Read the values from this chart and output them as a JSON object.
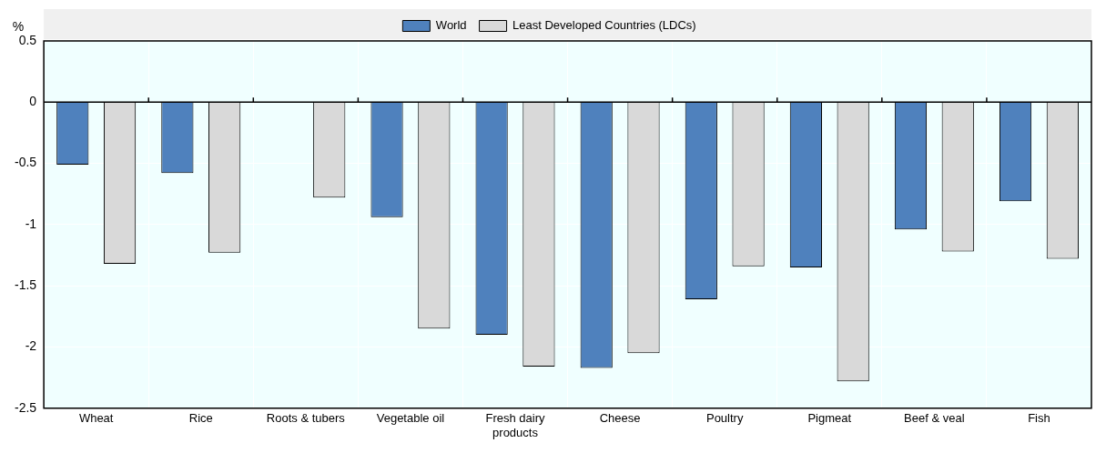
{
  "chart_data": {
    "type": "bar",
    "ylabel": "%",
    "categories": [
      "Wheat",
      "Rice",
      "Roots & tubers",
      "Vegetable oil",
      "Fresh dairy products",
      "Cheese",
      "Poultry",
      "Pigmeat",
      "Beef & veal",
      "Fish"
    ],
    "series": [
      {
        "name": "World",
        "color": "#4f81bd",
        "values": [
          -0.51,
          -0.58,
          0,
          -0.94,
          -1.9,
          -2.17,
          -1.61,
          -1.35,
          -1.04,
          -0.81
        ]
      },
      {
        "name": "Least Developed Countries (LDCs)",
        "color": "#d9d9d9",
        "values": [
          -1.32,
          -1.23,
          -0.78,
          -1.85,
          -2.16,
          -2.05,
          -1.34,
          -2.28,
          -1.22,
          -1.28
        ]
      }
    ],
    "ylim": [
      -2.5,
      0.5
    ],
    "yticks": [
      -2.5,
      -2,
      -1.5,
      -1,
      -0.5,
      0,
      0.5
    ],
    "grid": true,
    "legend": "top"
  }
}
